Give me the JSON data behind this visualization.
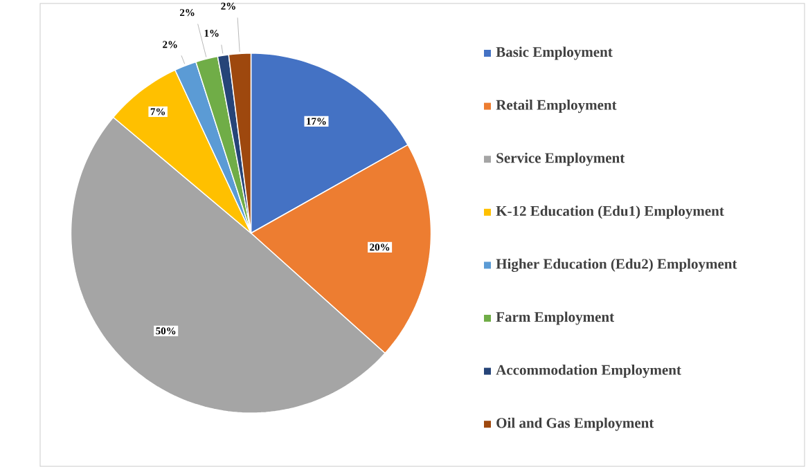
{
  "chart_data": {
    "type": "pie",
    "categories": [
      "Basic Employment",
      "Retail Employment",
      "Service Employment",
      "K-12 Education (Edu1) Employment",
      "Higher Education (Edu2) Employment",
      "Farm Employment",
      "Accommodation Employment",
      "Oil and Gas Employment"
    ],
    "values": [
      17,
      20,
      50,
      7,
      2,
      2,
      1,
      2
    ],
    "value_labels": [
      "17%",
      "20%",
      "50%",
      "7%",
      "2%",
      "2%",
      "1%",
      "2%"
    ],
    "colors": [
      "#4472c4",
      "#ed7d31",
      "#a5a5a5",
      "#ffc000",
      "#5b9bd5",
      "#70ad47",
      "#264478",
      "#9e480e"
    ],
    "legend": "right"
  }
}
